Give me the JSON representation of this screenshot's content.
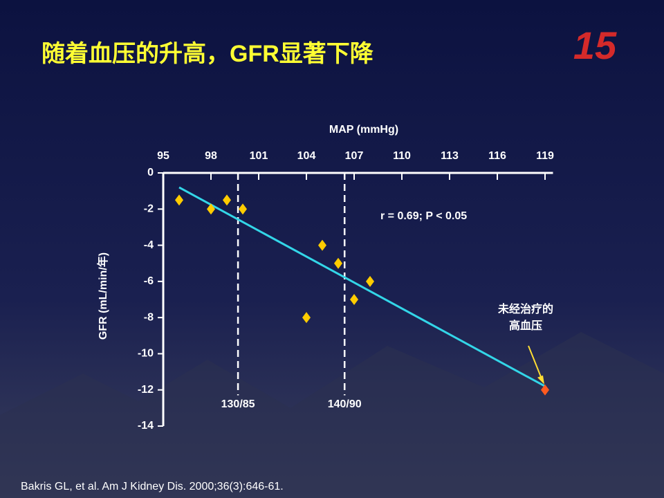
{
  "title": "随着血压的升高，GFR显著下降",
  "logo": "15",
  "citation": "Bakris GL, et al. Am J Kidney Dis. 2000;36(3):646-61.",
  "chart_data": {
    "type": "scatter",
    "x_label": "MAP (mmHg)",
    "y_label": "GFR (mL/min/年)",
    "xlim": [
      95,
      119.5
    ],
    "xticks": [
      95,
      98,
      101,
      104,
      107,
      110,
      113,
      116,
      119
    ],
    "ylim": [
      -14,
      0
    ],
    "yticks": [
      0,
      -2,
      -4,
      -6,
      -8,
      -10,
      -12,
      -14
    ],
    "series": [
      {
        "color": "#ffcc00",
        "x": [
          96,
          98,
          99,
          100,
          104,
          105,
          106,
          107,
          108
        ],
        "values": [
          -1.5,
          -2,
          -1.5,
          -2,
          -8,
          -4,
          -5,
          -7,
          -6
        ]
      },
      {
        "color": "#ff5a1f",
        "x": [
          119
        ],
        "values": [
          -12
        ]
      }
    ],
    "fit": {
      "color": "#33d6e8",
      "x": [
        96,
        119
      ],
      "values": [
        -0.8,
        -11.8
      ]
    },
    "reference_lines": [
      {
        "x": 99.7,
        "label": "130/85"
      },
      {
        "x": 106.4,
        "label": "140/90"
      }
    ],
    "stats": "r = 0.69; P < 0.05",
    "annotation": {
      "lines": [
        "未经治疗的",
        "高血压"
      ],
      "x": 119,
      "y": -12
    }
  }
}
